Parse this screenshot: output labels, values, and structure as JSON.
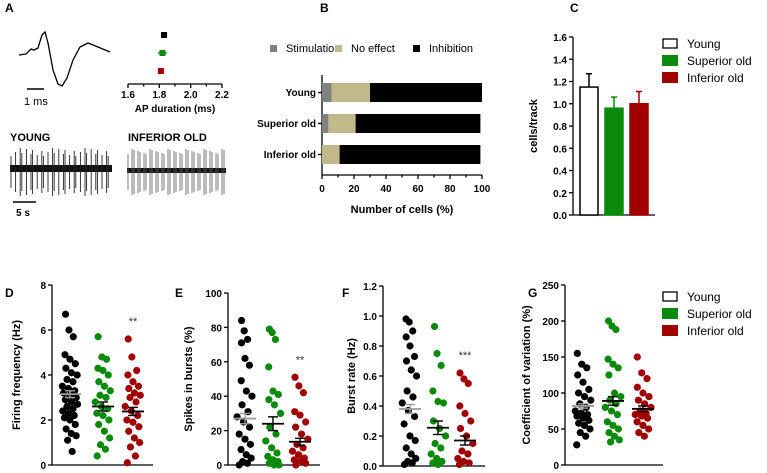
{
  "colors": {
    "young": "#000000",
    "superior": "#0a8a0a",
    "inferior": "#a00000",
    "stim": "#808080",
    "noeffect": "#c2b98a",
    "inhib": "#000000"
  },
  "chart_data": [
    {
      "panel": "A",
      "type": "scatter",
      "title": "",
      "xlabel": "AP duration (ms)",
      "xlim": [
        1.6,
        2.2
      ],
      "xticks": [
        "1.6",
        "1.8",
        "2.0",
        "2.2"
      ],
      "series": [
        {
          "name": "Young",
          "mean": 1.83,
          "err": 0.02
        },
        {
          "name": "Superior old",
          "mean": 1.82,
          "err": 0.03
        },
        {
          "name": "Inferior old",
          "mean": 1.81,
          "err": 0.02
        }
      ],
      "scalebars": {
        "waveform": "1 ms",
        "traces": "5 s"
      },
      "trace_labels": [
        "YOUNG",
        "INFERIOR OLD"
      ]
    },
    {
      "panel": "B",
      "type": "bar",
      "stacked": true,
      "orientation": "horizontal",
      "xlabel": "Number of cells (%)",
      "xlim": [
        0,
        100
      ],
      "xticks": [
        "0",
        "20",
        "40",
        "60",
        "80",
        "100"
      ],
      "categories": [
        "Young",
        "Superior old",
        "Inferior old"
      ],
      "series": [
        {
          "name": "Stimulation",
          "values": [
            6,
            4,
            0
          ]
        },
        {
          "name": "No effect",
          "values": [
            24,
            17,
            11
          ]
        },
        {
          "name": "Inhibition",
          "values": [
            70,
            78,
            88
          ]
        }
      ],
      "legend": "top"
    },
    {
      "panel": "C",
      "type": "bar",
      "ylabel": "cells/track",
      "ylim": [
        0,
        1.6
      ],
      "yticks": [
        "0.0",
        "0.2",
        "0.4",
        "0.6",
        "0.8",
        "1.0",
        "1.2",
        "1.4",
        "1.6"
      ],
      "categories": [
        "Young",
        "Superior old",
        "Inferior old"
      ],
      "values": [
        1.15,
        0.96,
        1.0
      ],
      "errors": [
        0.12,
        0.1,
        0.11
      ],
      "legend": "right"
    },
    {
      "panel": "D",
      "type": "scatter",
      "ylabel": "Firing frequency (Hz)",
      "ylim": [
        0,
        8
      ],
      "yticks": [
        "0",
        "2",
        "4",
        "6",
        "8"
      ],
      "annotation": "**",
      "series": [
        {
          "name": "Young",
          "mean": 3.15,
          "sem": 0.15,
          "values": [
            6.7,
            6.0,
            5.7,
            4.9,
            4.7,
            4.5,
            4.3,
            4.1,
            4.0,
            3.8,
            3.7,
            3.5,
            3.4,
            3.3,
            3.2,
            3.1,
            3.0,
            2.9,
            2.8,
            2.7,
            2.6,
            2.5,
            2.4,
            2.3,
            2.2,
            2.1,
            2.0,
            1.8,
            1.6,
            1.4,
            1.3,
            1.1,
            0.6
          ]
        },
        {
          "name": "Superior old",
          "mean": 2.6,
          "sem": 0.2,
          "values": [
            5.7,
            4.8,
            4.7,
            4.3,
            4.2,
            4.0,
            3.7,
            3.5,
            3.3,
            3.1,
            3.0,
            2.8,
            2.6,
            2.5,
            2.3,
            2.2,
            2.0,
            1.8,
            1.5,
            1.2,
            0.9,
            0.7,
            0.4
          ]
        },
        {
          "name": "Inferior old",
          "mean": 2.38,
          "sem": 0.18,
          "values": [
            5.6,
            4.8,
            4.2,
            4.0,
            3.7,
            3.5,
            3.4,
            3.2,
            3.1,
            3.0,
            2.8,
            2.6,
            2.4,
            2.2,
            2.0,
            1.9,
            1.7,
            1.5,
            1.2,
            1.0,
            0.8,
            0.4,
            0.1
          ]
        }
      ]
    },
    {
      "panel": "E",
      "type": "scatter",
      "ylabel": "Spikes in bursts (%)",
      "ylim": [
        0,
        100
      ],
      "yticks": [
        "0",
        "20",
        "40",
        "60",
        "80",
        "100"
      ],
      "annotation": "**",
      "series": [
        {
          "name": "Young",
          "mean": 27,
          "sem": 3,
          "values": [
            84,
            78,
            73,
            71,
            62,
            58,
            49,
            43,
            40,
            35,
            31,
            28,
            25,
            22,
            18,
            15,
            12,
            9,
            6,
            4,
            2,
            1,
            0
          ]
        },
        {
          "name": "Superior old",
          "mean": 24,
          "sem": 4,
          "values": [
            79,
            77,
            73,
            57,
            43,
            41,
            38,
            35,
            30,
            22,
            18,
            14,
            10,
            7,
            5,
            3,
            2,
            1,
            0,
            0
          ]
        },
        {
          "name": "Inferior old",
          "mean": 13.5,
          "sem": 2,
          "values": [
            51,
            46,
            42,
            31,
            29,
            25,
            22,
            18,
            15,
            12,
            10,
            8,
            6,
            4,
            3,
            2,
            1,
            0
          ]
        }
      ]
    },
    {
      "panel": "F",
      "type": "scatter",
      "ylabel": "Burst rate (Hz)",
      "ylim": [
        0,
        1.2
      ],
      "yticks": [
        "0.0",
        "0.2",
        "0.4",
        "0.6",
        "0.8",
        "1.0",
        "1.2"
      ],
      "annotation": "***",
      "series": [
        {
          "name": "Young",
          "mean": 0.38,
          "sem": 0.03,
          "values": [
            0.98,
            0.96,
            0.9,
            0.86,
            0.8,
            0.73,
            0.7,
            0.64,
            0.6,
            0.5,
            0.46,
            0.42,
            0.37,
            0.33,
            0.28,
            0.2,
            0.17,
            0.12,
            0.08,
            0.05,
            0.03,
            0.02,
            0.01
          ]
        },
        {
          "name": "Superior old",
          "mean": 0.255,
          "sem": 0.045,
          "values": [
            0.93,
            0.75,
            0.67,
            0.5,
            0.43,
            0.42,
            0.3,
            0.25,
            0.2,
            0.15,
            0.12,
            0.08,
            0.05,
            0.03,
            0.02,
            0.01
          ]
        },
        {
          "name": "Inferior old",
          "mean": 0.17,
          "sem": 0.03,
          "values": [
            0.62,
            0.58,
            0.55,
            0.4,
            0.35,
            0.3,
            0.25,
            0.2,
            0.15,
            0.1,
            0.08,
            0.05,
            0.03,
            0.02,
            0.01
          ]
        }
      ]
    },
    {
      "panel": "G",
      "type": "scatter",
      "ylabel": "Coefficient of variation (%)",
      "ylim": [
        0,
        250
      ],
      "yticks": [
        "0",
        "50",
        "100",
        "150",
        "200",
        "250"
      ],
      "legend": "right",
      "series": [
        {
          "name": "Young",
          "mean": 82,
          "sem": 3,
          "values": [
            155,
            140,
            135,
            125,
            115,
            105,
            100,
            95,
            90,
            85,
            80,
            75,
            72,
            70,
            68,
            65,
            62,
            58,
            55,
            50,
            45,
            40,
            28
          ]
        },
        {
          "name": "Superior old",
          "mean": 89,
          "sem": 6,
          "values": [
            200,
            193,
            188,
            147,
            140,
            135,
            125,
            100,
            95,
            90,
            85,
            80,
            75,
            70,
            60,
            55,
            50,
            45,
            40,
            35,
            32
          ]
        },
        {
          "name": "Inferior old",
          "mean": 78,
          "sem": 4,
          "values": [
            150,
            128,
            120,
            108,
            100,
            95,
            90,
            85,
            80,
            75,
            72,
            70,
            68,
            65,
            60,
            55,
            50,
            45,
            40
          ]
        }
      ]
    }
  ],
  "legend_groups": [
    "Young",
    "Superior old",
    "Inferior old"
  ]
}
